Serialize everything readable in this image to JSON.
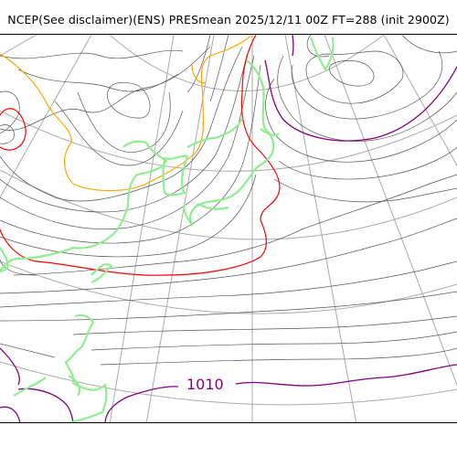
{
  "header": {
    "title": "NCEP(See disclaimer)(ENS) PRESmean 2025/12/11 00Z FT=288 (init 2900Z)"
  },
  "map": {
    "contour_labels": [
      "1010"
    ],
    "colors": {
      "isobar": "#555555",
      "graticule": "#aaaaaa",
      "coastline": "#90ee90",
      "highlight_red": "#ff0000",
      "highlight_orange": "#ffa500",
      "highlight_purple": "#800080"
    }
  }
}
